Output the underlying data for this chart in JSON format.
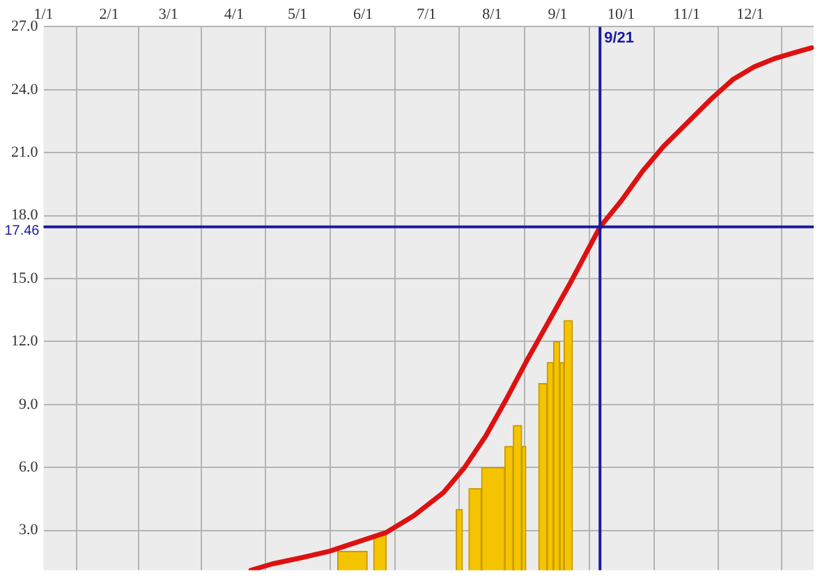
{
  "chart_data": {
    "type": "line",
    "xlim": [
      "--01-01",
      "--12-31"
    ],
    "ylim": [
      1.1,
      27
    ],
    "xticks": [
      {
        "value": "--01-01",
        "label": "1/1"
      },
      {
        "value": "--02-01",
        "label": "2/1"
      },
      {
        "value": "--03-01",
        "label": "3/1"
      },
      {
        "value": "--04-01",
        "label": "4/1"
      },
      {
        "value": "--05-01",
        "label": "5/1"
      },
      {
        "value": "--06-01",
        "label": "6/1"
      },
      {
        "value": "--07-01",
        "label": "7/1"
      },
      {
        "value": "--08-01",
        "label": "8/1"
      },
      {
        "value": "--09-01",
        "label": "9/1"
      },
      {
        "value": "--10-01",
        "label": "10/1"
      },
      {
        "value": "--11-01",
        "label": "11/1"
      },
      {
        "value": "--12-01",
        "label": "12/1"
      }
    ],
    "yticks": [
      {
        "value": 3,
        "label": "3.0"
      },
      {
        "value": 6,
        "label": "6.0"
      },
      {
        "value": 9,
        "label": "9.0"
      },
      {
        "value": 12,
        "label": "12.0"
      },
      {
        "value": 15,
        "label": "15.0"
      },
      {
        "value": 18,
        "label": "18.0"
      },
      {
        "value": 21,
        "label": "21.0"
      },
      {
        "value": 24,
        "label": "24.0"
      },
      {
        "value": 27,
        "label": "27.0"
      }
    ],
    "grid": true,
    "legend": false,
    "marker": "none",
    "ref_lines": [
      {
        "axis": "x",
        "value": "--09-21",
        "label": "9/21",
        "color": "#1a1aa0"
      },
      {
        "axis": "y",
        "value": 17.46,
        "label": "17.46",
        "color": "#1a1aa0"
      }
    ],
    "series": [
      {
        "type": "histogram",
        "color": "#f5c400",
        "bins": [
          "--05-20",
          "--06-03",
          "--06-06",
          "--06-12",
          "--07-15",
          "--07-18",
          "--07-21",
          "--07-27",
          "--08-07",
          "--08-11",
          "--08-15",
          "--08-17",
          "--08-23",
          "--08-27",
          "--08-30",
          "--09-02",
          "--09-04",
          "--09-08"
        ],
        "values": [
          2,
          null,
          2.8,
          null,
          4,
          null,
          5,
          6,
          7,
          8,
          7,
          null,
          10,
          11,
          12,
          11,
          13
        ]
      },
      {
        "color": "#dd1111",
        "x": [
          "--04-09",
          "--04-19",
          "--05-03",
          "--05-16",
          "--05-31",
          "--06-12",
          "--06-25",
          "--07-09",
          "--07-19",
          "--07-29",
          "--08-08",
          "--08-18",
          "--08-28",
          "--09-07",
          "--09-21",
          "--10-01",
          "--10-11",
          "--10-21",
          "--11-01",
          "--11-13",
          "--11-23",
          "--12-03",
          "--12-13",
          "--12-23",
          "--12-30"
        ],
        "values": [
          1.1,
          1.4,
          1.7,
          2.0,
          2.5,
          2.9,
          3.7,
          4.8,
          6.0,
          7.5,
          9.3,
          11.2,
          13.0,
          14.8,
          17.46,
          18.7,
          20.1,
          21.3,
          22.4,
          23.6,
          24.5,
          25.1,
          25.5,
          25.8,
          26.0
        ]
      }
    ]
  }
}
